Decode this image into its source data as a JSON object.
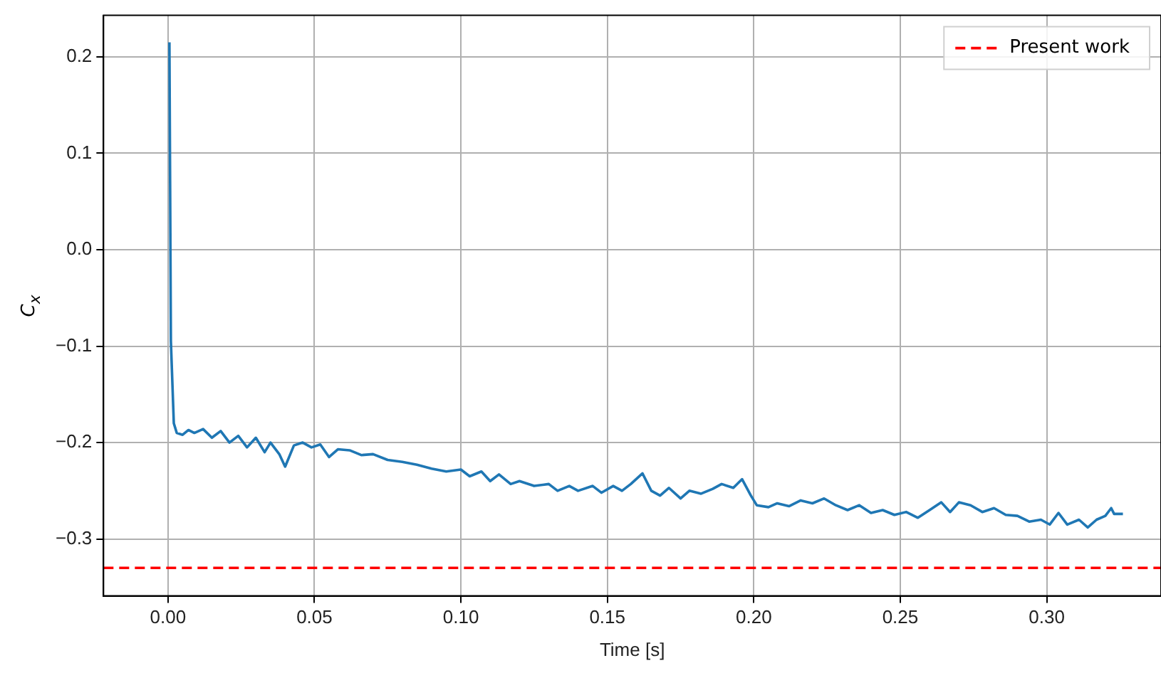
{
  "chart_data": {
    "type": "line",
    "xlabel": "Time [s]",
    "ylabel": "C$_{x}$",
    "xlim": [
      -0.022,
      0.339
    ],
    "ylim": [
      -0.359,
      0.243
    ],
    "xticks": [
      {
        "value": 0,
        "label": "0.00"
      },
      {
        "value": 0.05,
        "label": "0.05"
      },
      {
        "value": 0.1,
        "label": "0.10"
      },
      {
        "value": 0.15,
        "label": "0.15"
      },
      {
        "value": 0.2,
        "label": "0.20"
      },
      {
        "value": 0.25,
        "label": "0.25"
      },
      {
        "value": 0.3,
        "label": "0.30"
      }
    ],
    "yticks": [
      {
        "value": -0.3,
        "label": "−0.3"
      },
      {
        "value": -0.2,
        "label": "−0.2"
      },
      {
        "value": -0.1,
        "label": "−0.1"
      },
      {
        "value": 0,
        "label": "0.0"
      },
      0.1,
      0.2
    ],
    "grid": true,
    "legend": "top right",
    "line_style": "solid",
    "marker": "none",
    "series": [
      {
        "color": "#1f77b4",
        "x": [
          0.0005,
          0.001,
          0.002,
          0.003,
          0.005,
          0.007,
          0.009,
          0.012,
          0.015,
          0.018,
          0.021,
          0.024,
          0.027,
          0.03,
          0.033,
          0.035,
          0.038,
          0.04,
          0.043,
          0.046,
          0.049,
          0.052,
          0.055,
          0.058,
          0.062,
          0.066,
          0.07,
          0.075,
          0.08,
          0.085,
          0.09,
          0.095,
          0.1,
          0.103,
          0.107,
          0.11,
          0.113,
          0.117,
          0.12,
          0.125,
          0.13,
          0.133,
          0.137,
          0.14,
          0.145,
          0.148,
          0.152,
          0.155,
          0.158,
          0.162,
          0.165,
          0.168,
          0.171,
          0.175,
          0.178,
          0.182,
          0.186,
          0.189,
          0.193,
          0.196,
          0.199,
          0.201,
          0.205,
          0.208,
          0.212,
          0.216,
          0.22,
          0.224,
          0.228,
          0.232,
          0.236,
          0.24,
          0.244,
          0.248,
          0.252,
          0.256,
          0.26,
          0.264,
          0.267,
          0.27,
          0.274,
          0.278,
          0.282,
          0.286,
          0.29,
          0.294,
          0.298,
          0.301,
          0.304,
          0.307,
          0.311,
          0.314,
          0.317,
          0.32,
          0.322,
          0.323,
          0.326
        ],
        "values": [
          0.215,
          -0.095,
          -0.18,
          -0.19,
          -0.192,
          -0.187,
          -0.19,
          -0.186,
          -0.195,
          -0.188,
          -0.2,
          -0.193,
          -0.205,
          -0.195,
          -0.21,
          -0.2,
          -0.212,
          -0.225,
          -0.203,
          -0.2,
          -0.205,
          -0.202,
          -0.215,
          -0.207,
          -0.208,
          -0.213,
          -0.212,
          -0.218,
          -0.22,
          -0.223,
          -0.227,
          -0.23,
          -0.228,
          -0.235,
          -0.23,
          -0.24,
          -0.233,
          -0.243,
          -0.24,
          -0.245,
          -0.243,
          -0.25,
          -0.245,
          -0.25,
          -0.245,
          -0.252,
          -0.245,
          -0.25,
          -0.243,
          -0.232,
          -0.25,
          -0.255,
          -0.247,
          -0.258,
          -0.25,
          -0.253,
          -0.248,
          -0.243,
          -0.247,
          -0.238,
          -0.255,
          -0.265,
          -0.267,
          -0.263,
          -0.266,
          -0.26,
          -0.263,
          -0.258,
          -0.265,
          -0.27,
          -0.265,
          -0.273,
          -0.27,
          -0.275,
          -0.272,
          -0.278,
          -0.27,
          -0.262,
          -0.272,
          -0.262,
          -0.265,
          -0.272,
          -0.268,
          -0.275,
          -0.276,
          -0.282,
          -0.28,
          -0.285,
          -0.273,
          -0.285,
          -0.28,
          -0.288,
          -0.28,
          -0.276,
          -0.268,
          -0.274,
          -0.274
        ]
      }
    ],
    "ref_lines": [
      {
        "axis": "y",
        "value": -0.33,
        "label": "Present work",
        "color": "#ff0000",
        "line_style": "dashed"
      }
    ]
  }
}
